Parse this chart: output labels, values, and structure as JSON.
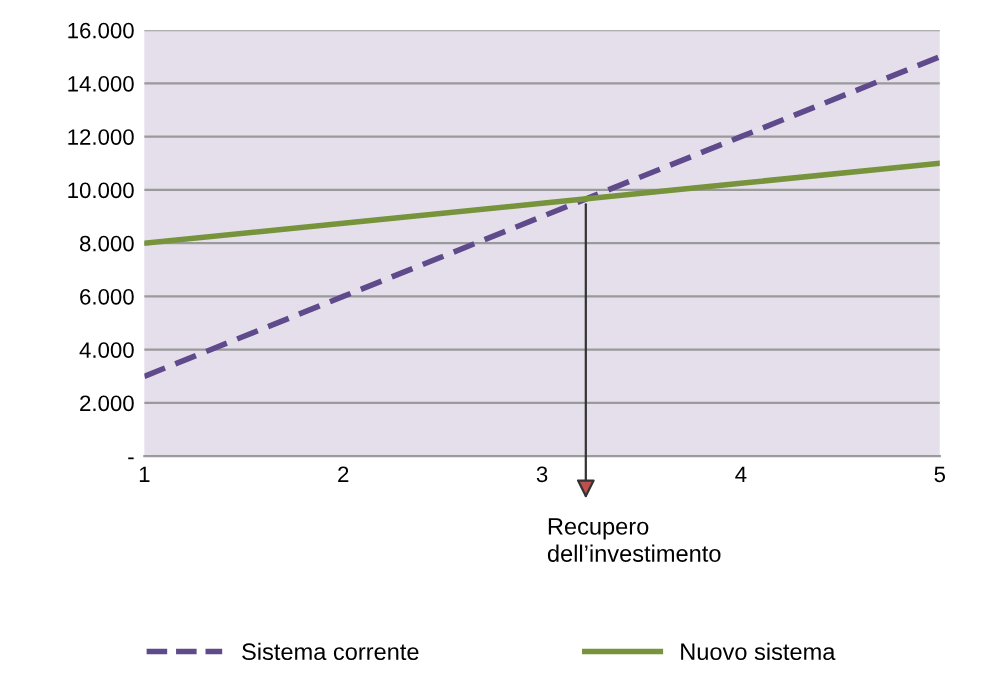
{
  "chart_data": {
    "type": "line",
    "x": [
      1,
      2,
      3,
      4,
      5
    ],
    "series": [
      {
        "name": "Sistema corrente",
        "color": "#5f4b8b",
        "values": [
          3000,
          6000,
          9000,
          12000,
          15000
        ],
        "line_style": "dashed"
      },
      {
        "name": "Nuovo sistema",
        "color": "#77933c",
        "values": [
          8000,
          8750,
          9500,
          10250,
          11000
        ],
        "line_style": "solid"
      }
    ],
    "xlim": [
      1,
      5
    ],
    "xticks": [
      1,
      2,
      3,
      4,
      5
    ],
    "ylim": [
      0,
      16000
    ],
    "yticks": [
      {
        "value": 0,
        "label": "-"
      },
      {
        "value": 2000,
        "label": "2.000"
      },
      {
        "value": 4000,
        "label": "4.000"
      },
      {
        "value": 6000,
        "label": "6.000"
      },
      {
        "value": 8000,
        "label": "8.000"
      },
      {
        "value": 10000,
        "label": "10.000"
      },
      {
        "value": 12000,
        "label": "12.000"
      },
      {
        "value": 14000,
        "label": "14.000"
      },
      {
        "value": 16000,
        "label": "16.000"
      }
    ],
    "grid": "y",
    "legend": "bottom",
    "marker": "none",
    "annotations": [
      {
        "text": "Recupero\ndell’investimento",
        "x": 3.22,
        "y": 9670
      }
    ]
  }
}
